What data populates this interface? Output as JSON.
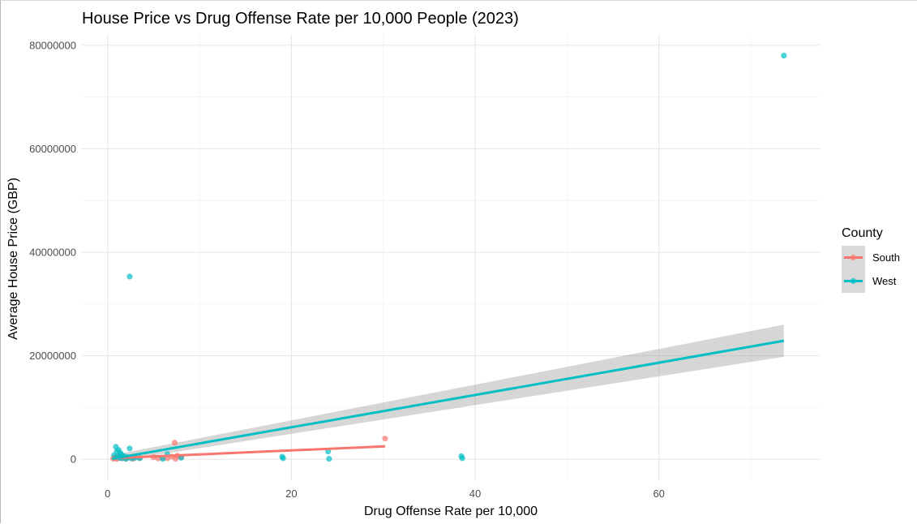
{
  "chart_data": {
    "type": "scatter",
    "title": "House Price vs Drug Offense Rate per 10,000 People (2023)",
    "xlabel": "Drug Offense Rate per 10,000",
    "ylabel": "Average House Price (GBP)",
    "xlim": [
      -2.8,
      77.5
    ],
    "ylim": [
      -4200000,
      82000000
    ],
    "x_ticks": [
      0,
      20,
      40,
      60
    ],
    "x_tick_labels": [
      "0",
      "20",
      "40",
      "60"
    ],
    "y_ticks": [
      0,
      20000000,
      40000000,
      60000000,
      80000000
    ],
    "y_tick_labels": [
      "0",
      "20000000",
      "40000000",
      "60000000",
      "80000000"
    ],
    "grid": true,
    "legend": {
      "title": "County",
      "placement": "right"
    },
    "series": [
      {
        "name": "South",
        "color": "#F8766D",
        "points": [
          [
            0.6,
            150000
          ],
          [
            0.8,
            300000
          ],
          [
            1.0,
            80000
          ],
          [
            1.2,
            500000
          ],
          [
            1.5,
            200000
          ],
          [
            2.0,
            100000
          ],
          [
            2.4,
            350000
          ],
          [
            2.8,
            120000
          ],
          [
            3.5,
            250000
          ],
          [
            5.0,
            400000
          ],
          [
            5.5,
            150000
          ],
          [
            6.0,
            300000
          ],
          [
            6.5,
            200000
          ],
          [
            7.0,
            500000
          ],
          [
            7.3,
            3200000
          ],
          [
            7.4,
            100000
          ],
          [
            7.6,
            700000
          ],
          [
            8.0,
            400000
          ],
          [
            30.2,
            4000000
          ]
        ],
        "fit_line": [
          [
            0.5,
            200000
          ],
          [
            30.2,
            2500000
          ]
        ]
      },
      {
        "name": "West",
        "color": "#00BFC4",
        "points": [
          [
            0.7,
            800000
          ],
          [
            0.9,
            2400000
          ],
          [
            1.0,
            1500000
          ],
          [
            1.1,
            500000
          ],
          [
            1.2,
            1800000
          ],
          [
            1.3,
            300000
          ],
          [
            1.4,
            1200000
          ],
          [
            1.5,
            900000
          ],
          [
            1.6,
            200000
          ],
          [
            1.8,
            600000
          ],
          [
            2.0,
            100000
          ],
          [
            2.2,
            400000
          ],
          [
            2.4,
            2100000
          ],
          [
            2.4,
            35300000
          ],
          [
            2.6,
            150000
          ],
          [
            3.0,
            300000
          ],
          [
            3.5,
            200000
          ],
          [
            6.0,
            100000
          ],
          [
            6.5,
            1000000
          ],
          [
            8.0,
            300000
          ],
          [
            19.0,
            500000
          ],
          [
            19.1,
            200000
          ],
          [
            24.0,
            1500000
          ],
          [
            24.1,
            100000
          ],
          [
            38.5,
            600000
          ],
          [
            38.6,
            200000
          ],
          [
            73.6,
            78000000
          ]
        ],
        "fit_line": [
          [
            0.5,
            100000
          ],
          [
            73.6,
            22900000
          ]
        ],
        "ci_band": {
          "x": [
            0.5,
            73.6
          ],
          "lower": [
            -500000,
            19800000
          ],
          "upper": [
            800000,
            26000000
          ]
        }
      }
    ]
  }
}
